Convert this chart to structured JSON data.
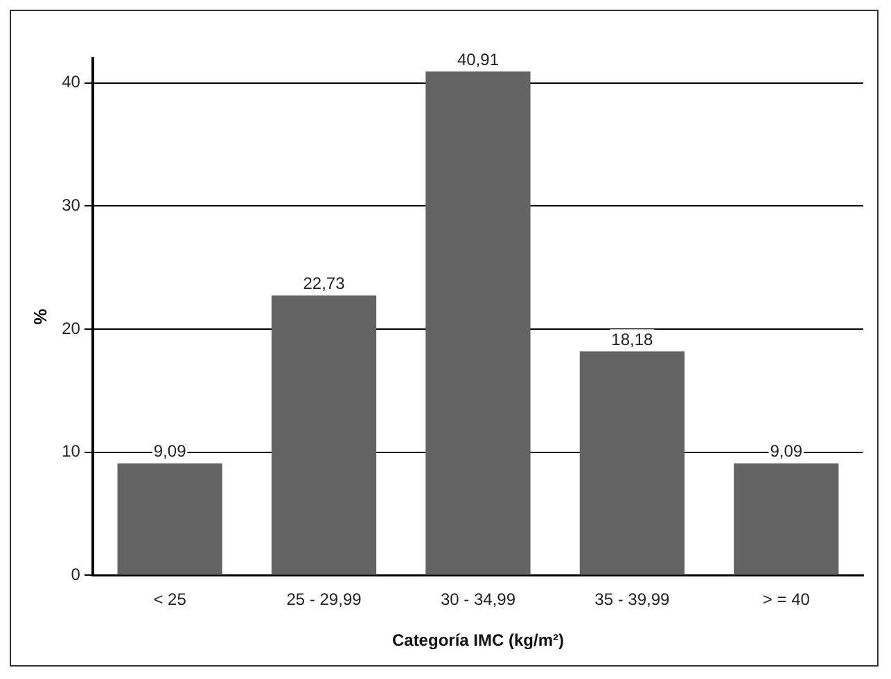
{
  "chart_data": {
    "type": "bar",
    "xlabel": "Categoría IMC (kg/m²)",
    "ylabel": "%",
    "categories": [
      "< 25",
      "25 - 29,99",
      "30 - 34,99",
      "35 - 39,99",
      "> = 40"
    ],
    "values": [
      9.09,
      22.73,
      40.91,
      18.18,
      9.09
    ],
    "value_labels": [
      "9,09",
      "22,73",
      "40,91",
      "18,18",
      "9,09"
    ],
    "color": "#636363",
    "ylim": [
      0,
      42
    ],
    "yticks": [
      0,
      10,
      20,
      30,
      40
    ],
    "grid": "y",
    "legend": false
  }
}
